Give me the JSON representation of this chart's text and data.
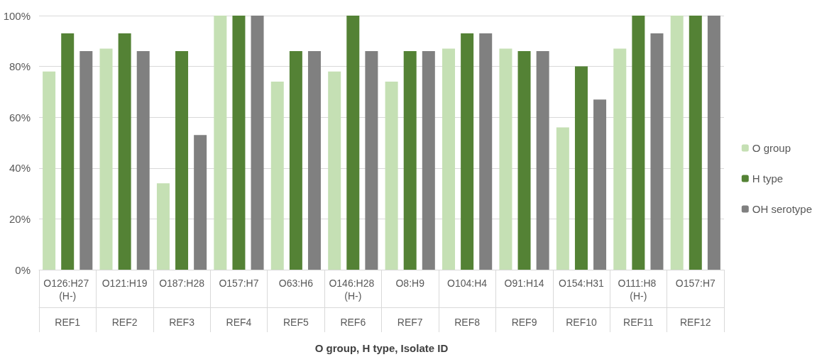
{
  "chart_data": {
    "type": "bar",
    "xlabel": "O group, H type, Isolate ID",
    "categories": [
      "O126:H27 (H-)",
      "O121:H19",
      "O187:H28",
      "O157:H7",
      "O63:H6",
      "O146:H28 (H-)",
      "O8:H9",
      "O104:H4",
      "O91:H14",
      "O154:H31",
      "O111:H8 (H-)",
      "O157:H7"
    ],
    "annotations": [
      "REF1",
      "REF2",
      "REF3",
      "REF4",
      "REF5",
      "REF6",
      "REF7",
      "REF8",
      "REF9",
      "REF10",
      "REF11",
      "REF12"
    ],
    "series": [
      {
        "name": "O group",
        "color": "#c5e0b4",
        "values": [
          78,
          87,
          34,
          100,
          74,
          78,
          74,
          87,
          87,
          56,
          87,
          100
        ]
      },
      {
        "name": "H type",
        "color": "#548235",
        "values": [
          93,
          93,
          86,
          100,
          86,
          100,
          86,
          93,
          86,
          80,
          100,
          100
        ]
      },
      {
        "name": "OH serotype",
        "color": "#808080",
        "values": [
          86,
          86,
          53,
          100,
          86,
          86,
          86,
          93,
          86,
          67,
          93,
          100
        ]
      }
    ],
    "ylim": [
      0,
      100
    ],
    "yticks": [
      {
        "value": 0,
        "label": "0%"
      },
      {
        "value": 20,
        "label": "20%"
      },
      {
        "value": 40,
        "label": "40%"
      },
      {
        "value": 60,
        "label": "60%"
      },
      {
        "value": 80,
        "label": "80%"
      },
      {
        "value": 100,
        "label": "100%"
      }
    ],
    "grid": "y",
    "legend": "right"
  }
}
